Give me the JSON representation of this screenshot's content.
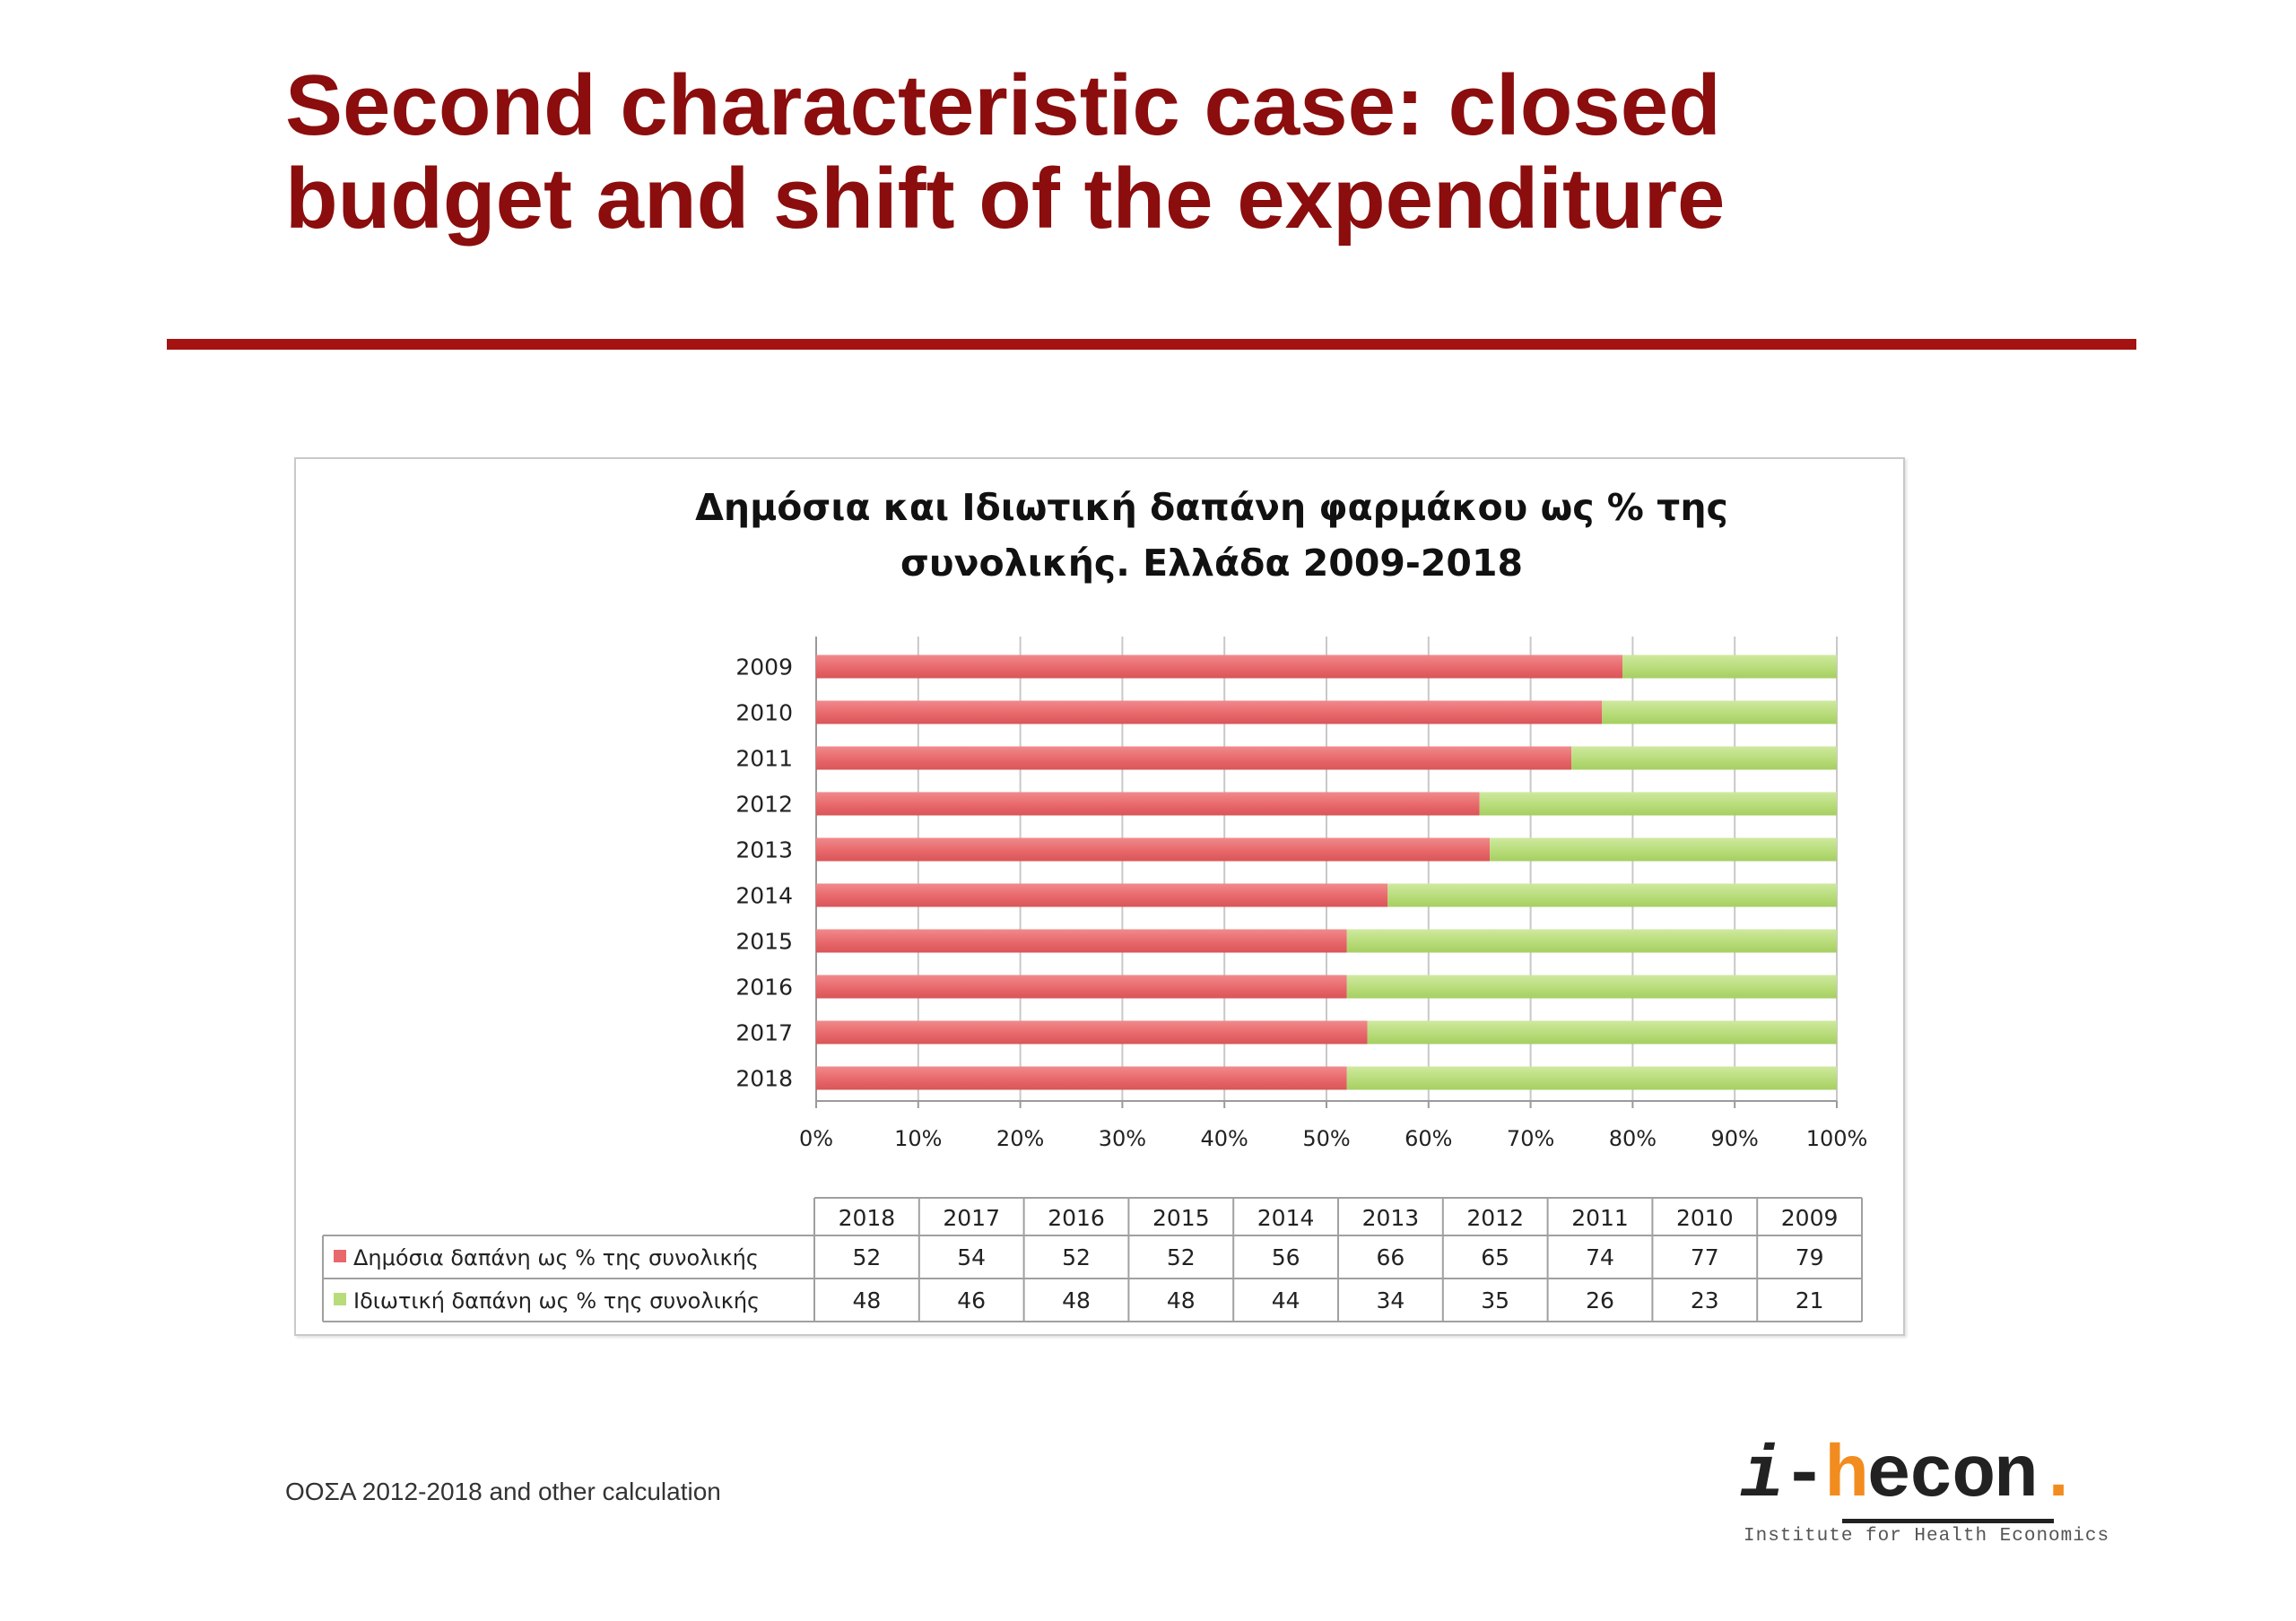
{
  "slide": {
    "title": "Second characteristic case: closed budget and shift of the expenditure",
    "source_note": "ΟΟΣΑ 2012-2018 and other calculation",
    "logo": {
      "text_i": "i",
      "text_dash": "-",
      "text_h": "h",
      "text_econ": "econ",
      "text_dot": ".",
      "tagline": "Institute for Health Economics"
    },
    "colors": {
      "title": "#8b0d0d",
      "rule": "#a51212",
      "logo_accent": "#f28c1e"
    }
  },
  "chart_data": {
    "type": "bar",
    "orientation": "horizontal",
    "stacked": "percent",
    "title_lines": [
      "Δημόσια και Ιδιωτική δαπάνη φαρμάκου ως % της",
      "συνολικής. Ελλάδα 2009-2018"
    ],
    "categories": [
      "2009",
      "2010",
      "2011",
      "2012",
      "2013",
      "2014",
      "2015",
      "2016",
      "2017",
      "2018"
    ],
    "table_columns": [
      "2018",
      "2017",
      "2016",
      "2015",
      "2014",
      "2013",
      "2012",
      "2011",
      "2010",
      "2009"
    ],
    "series": [
      {
        "name": "Δημόσια δαπάνη ως % της συνολικής",
        "color": "#e8686b",
        "values_by_column": [
          52,
          54,
          52,
          52,
          56,
          66,
          65,
          74,
          77,
          79
        ]
      },
      {
        "name": "Ιδιωτική δαπάνη ως % της συνολικής",
        "color": "#b8dc7a",
        "values_by_column": [
          48,
          46,
          48,
          48,
          44,
          34,
          35,
          26,
          23,
          21
        ]
      }
    ],
    "x_ticks": [
      "0%",
      "10%",
      "20%",
      "30%",
      "40%",
      "50%",
      "60%",
      "70%",
      "80%",
      "90%",
      "100%"
    ],
    "xlim": [
      0,
      100
    ],
    "grid": true,
    "legend": "data-table"
  }
}
